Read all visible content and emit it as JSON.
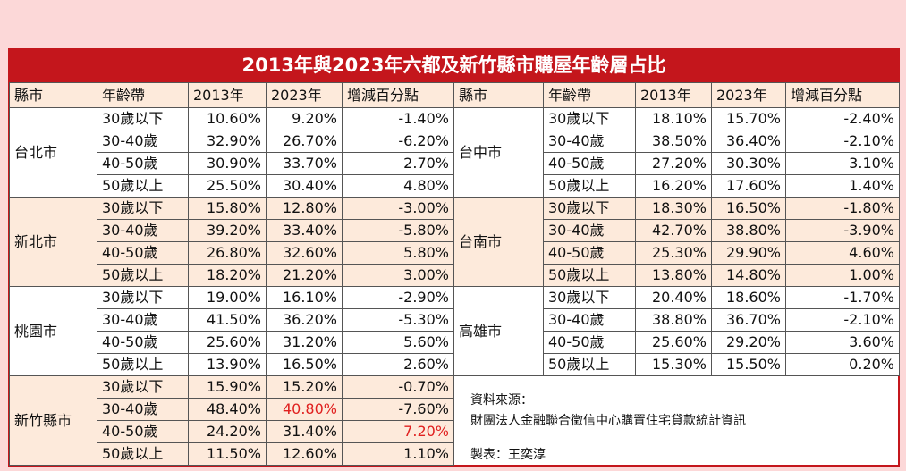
{
  "header": {
    "title": "2013年與2023年六都及新竹縣市購屋年齡層占比"
  },
  "table": {
    "headers": [
      "縣市",
      "年齡帶",
      "2013年",
      "2023年",
      "增減百分點"
    ],
    "left": [
      {
        "city": "台北市",
        "shade": false,
        "rows": [
          [
            "30歲以下",
            "10.60%",
            "9.20%",
            "-1.40%"
          ],
          [
            "30-40歲",
            "32.90%",
            "26.70%",
            "-6.20%"
          ],
          [
            "40-50歲",
            "30.90%",
            "33.70%",
            "2.70%"
          ],
          [
            "50歲以上",
            "25.50%",
            "30.40%",
            "4.80%"
          ]
        ]
      },
      {
        "city": "新北市",
        "shade": true,
        "rows": [
          [
            "30歲以下",
            "15.80%",
            "12.80%",
            "-3.00%"
          ],
          [
            "30-40歲",
            "39.20%",
            "33.40%",
            "-5.80%"
          ],
          [
            "40-50歲",
            "26.80%",
            "32.60%",
            "5.80%"
          ],
          [
            "50歲以上",
            "18.20%",
            "21.20%",
            "3.00%"
          ]
        ]
      },
      {
        "city": "桃園市",
        "shade": false,
        "rows": [
          [
            "30歲以下",
            "19.00%",
            "16.10%",
            "-2.90%"
          ],
          [
            "30-40歲",
            "41.50%",
            "36.20%",
            "-5.30%"
          ],
          [
            "40-50歲",
            "25.60%",
            "31.20%",
            "5.60%"
          ],
          [
            "50歲以上",
            "13.90%",
            "16.50%",
            "2.60%"
          ]
        ]
      },
      {
        "city": "新竹縣市",
        "shade": true,
        "rows": [
          [
            "30歲以下",
            "15.90%",
            "15.20%",
            "-0.70%"
          ],
          [
            "30-40歲",
            "48.40%",
            "40.80%",
            "-7.60%"
          ],
          [
            "40-50歲",
            "24.20%",
            "31.40%",
            "7.20%"
          ],
          [
            "50歲以上",
            "11.50%",
            "12.60%",
            "1.10%"
          ]
        ],
        "highlight": [
          [
            1,
            2
          ],
          [
            2,
            3
          ]
        ]
      }
    ],
    "right": [
      {
        "city": "台中市",
        "shade": false,
        "rows": [
          [
            "30歲以下",
            "18.10%",
            "15.70%",
            "-2.40%"
          ],
          [
            "30-40歲",
            "38.50%",
            "36.40%",
            "-2.10%"
          ],
          [
            "40-50歲",
            "27.20%",
            "30.30%",
            "3.10%"
          ],
          [
            "50歲以上",
            "16.20%",
            "17.60%",
            "1.40%"
          ]
        ]
      },
      {
        "city": "台南市",
        "shade": true,
        "rows": [
          [
            "30歲以下",
            "18.30%",
            "16.50%",
            "-1.80%"
          ],
          [
            "30-40歲",
            "42.70%",
            "38.80%",
            "-3.90%"
          ],
          [
            "40-50歲",
            "25.30%",
            "29.90%",
            "4.60%"
          ],
          [
            "50歲以上",
            "13.80%",
            "14.80%",
            "1.00%"
          ]
        ]
      },
      {
        "city": "高雄市",
        "shade": false,
        "rows": [
          [
            "30歲以下",
            "20.40%",
            "18.60%",
            "-1.70%"
          ],
          [
            "30-40歲",
            "38.80%",
            "36.70%",
            "-2.10%"
          ],
          [
            "40-50歲",
            "25.60%",
            "29.20%",
            "3.60%"
          ],
          [
            "50歲以上",
            "15.30%",
            "15.50%",
            "0.20%"
          ]
        ]
      }
    ]
  },
  "note": {
    "source_label": "資料來源：",
    "source": "財團法人金融聯合徵信中心購置住宅貸款統計資訊",
    "author": "製表：王奕淳"
  }
}
